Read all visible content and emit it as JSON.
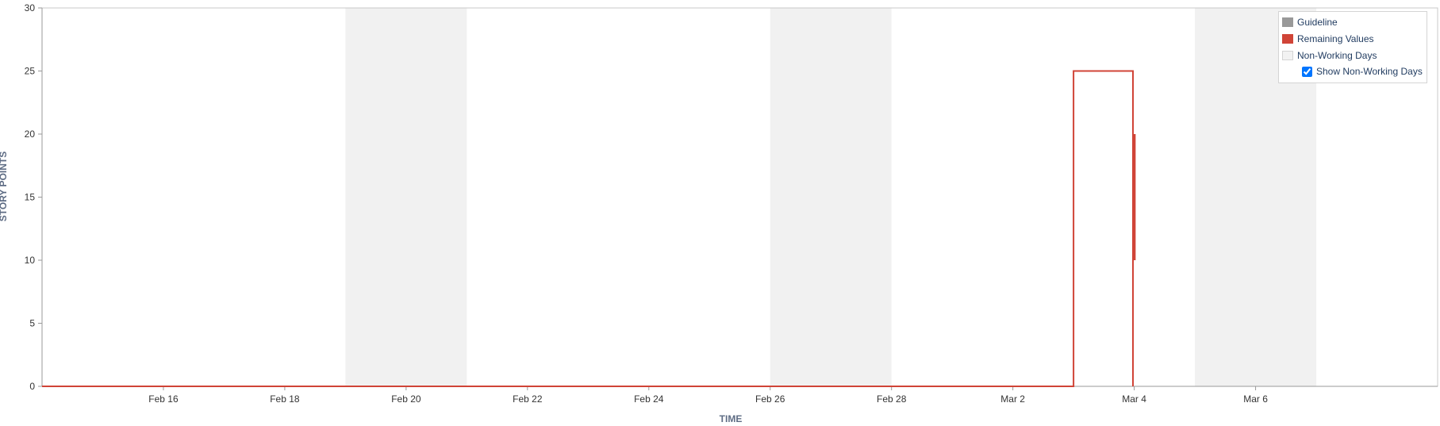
{
  "chart_data": {
    "type": "line",
    "title": "",
    "xlabel": "TIME",
    "ylabel": "STORY POINTS",
    "xlim": [
      "2025-02-14",
      "2025-03-09"
    ],
    "ylim": [
      0,
      30
    ],
    "yticks": [
      0,
      5,
      10,
      15,
      20,
      25,
      30
    ],
    "xticks": [
      {
        "date": "2025-02-16",
        "label": "Feb 16"
      },
      {
        "date": "2025-02-18",
        "label": "Feb 18"
      },
      {
        "date": "2025-02-20",
        "label": "Feb 20"
      },
      {
        "date": "2025-02-22",
        "label": "Feb 22"
      },
      {
        "date": "2025-02-24",
        "label": "Feb 24"
      },
      {
        "date": "2025-02-26",
        "label": "Feb 26"
      },
      {
        "date": "2025-02-28",
        "label": "Feb 28"
      },
      {
        "date": "2025-03-02",
        "label": "Mar 2"
      },
      {
        "date": "2025-03-04",
        "label": "Mar 4"
      },
      {
        "date": "2025-03-06",
        "label": "Mar 6"
      }
    ],
    "non_working_periods": [
      [
        "2025-02-19",
        "2025-02-21"
      ],
      [
        "2025-02-26",
        "2025-02-28"
      ],
      [
        "2025-03-05",
        "2025-03-07"
      ]
    ],
    "series": [
      {
        "name": "Remaining Values",
        "color": "#d04437",
        "points": [
          [
            "2025-02-14",
            0
          ],
          [
            "2025-03-03T00:00",
            0
          ],
          [
            "2025-03-03T00:00",
            25
          ],
          [
            "2025-03-03T23:30",
            25
          ],
          [
            "2025-03-03T23:30",
            0
          ]
        ],
        "markers": [
          {
            "date": "2025-03-04T00:05",
            "from": 10,
            "to": 20
          }
        ]
      }
    ],
    "legend": {
      "placement": "top-right",
      "items": [
        {
          "label": "Guideline",
          "color": "#999999"
        },
        {
          "label": "Remaining Values",
          "color": "#d04437"
        },
        {
          "label": "Non-Working Days",
          "color": "#f2f2f2"
        }
      ],
      "checkbox_label": "Show Non-Working Days",
      "checkbox_checked": true
    },
    "grid": false,
    "colors": {
      "axis": "#999999",
      "tick_text": "#333333",
      "label_text": "#5e6c84",
      "non_working": "#f1f1f1"
    }
  }
}
